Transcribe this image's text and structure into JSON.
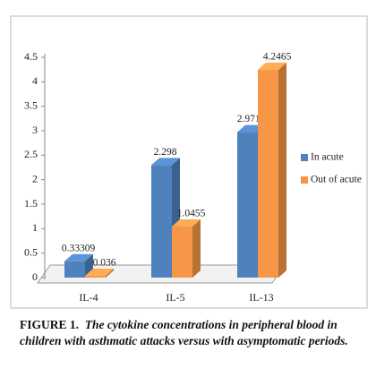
{
  "chart_data": {
    "type": "bar3d",
    "categories": [
      "IL-4",
      "IL-5",
      "IL-13"
    ],
    "series": [
      {
        "name": "In acute",
        "color": "#4f81bd",
        "values": [
          0.33309,
          2.298,
          2.9712
        ]
      },
      {
        "name": "Out of acute",
        "color": "#f79646",
        "values": [
          0.036,
          1.0455,
          4.2465
        ]
      }
    ],
    "ylim": [
      0,
      4.5
    ],
    "yticks": [
      0,
      0.5,
      1,
      1.5,
      2,
      2.5,
      3,
      3.5,
      4,
      4.5
    ],
    "legend": "right",
    "caption_label": "FIGURE 1.",
    "caption": "The cytokine concentrations in peripheral blood in children with asthmatic attacks versus with asymptomatic periods."
  }
}
